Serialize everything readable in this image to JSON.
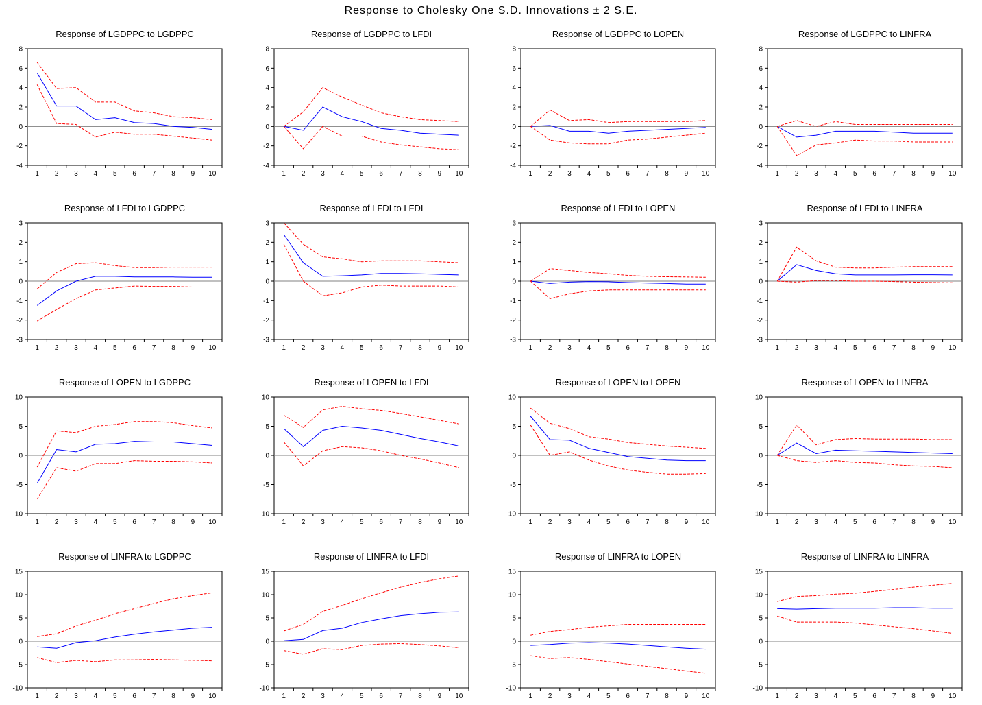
{
  "figure_title": "Response to Cholesky  One S.D. Innovations ± 2 S.E.",
  "colors": {
    "response": "#0000ff",
    "bands": "#ff0000",
    "zero_line": "#808080",
    "frame": "#000000"
  },
  "chart_data": [
    {
      "type": "line",
      "title": "Response of LGDPPC to LGDPPC",
      "x": [
        1,
        2,
        3,
        4,
        5,
        6,
        7,
        8,
        9,
        10
      ],
      "ylim": [
        -4,
        8
      ],
      "yticks": [
        -4,
        -2,
        0,
        2,
        4,
        6,
        8
      ],
      "series": [
        {
          "role": "response",
          "values": [
            5.5,
            2.1,
            2.1,
            0.7,
            0.9,
            0.4,
            0.3,
            0.0,
            -0.1,
            -0.3
          ]
        },
        {
          "role": "upper",
          "values": [
            6.6,
            3.9,
            4.0,
            2.5,
            2.5,
            1.6,
            1.4,
            1.0,
            0.9,
            0.7
          ]
        },
        {
          "role": "lower",
          "values": [
            4.3,
            0.3,
            0.2,
            -1.1,
            -0.6,
            -0.8,
            -0.8,
            -1.0,
            -1.2,
            -1.4
          ]
        }
      ]
    },
    {
      "type": "line",
      "title": "Response of LGDPPC to LFDI",
      "x": [
        1,
        2,
        3,
        4,
        5,
        6,
        7,
        8,
        9,
        10
      ],
      "ylim": [
        -4,
        8
      ],
      "yticks": [
        -4,
        -2,
        0,
        2,
        4,
        6,
        8
      ],
      "series": [
        {
          "role": "response",
          "values": [
            0.0,
            -0.4,
            2.0,
            1.0,
            0.5,
            -0.2,
            -0.4,
            -0.7,
            -0.8,
            -0.9
          ]
        },
        {
          "role": "upper",
          "values": [
            0.0,
            1.5,
            4.0,
            3.0,
            2.2,
            1.4,
            1.0,
            0.7,
            0.6,
            0.5
          ]
        },
        {
          "role": "lower",
          "values": [
            0.0,
            -2.3,
            0.0,
            -1.0,
            -1.0,
            -1.6,
            -1.9,
            -2.1,
            -2.3,
            -2.4
          ]
        }
      ]
    },
    {
      "type": "line",
      "title": "Response of LGDPPC to LOPEN",
      "x": [
        1,
        2,
        3,
        4,
        5,
        6,
        7,
        8,
        9,
        10
      ],
      "ylim": [
        -4,
        8
      ],
      "yticks": [
        -4,
        -2,
        0,
        2,
        4,
        6,
        8
      ],
      "series": [
        {
          "role": "response",
          "values": [
            0.0,
            0.1,
            -0.5,
            -0.5,
            -0.7,
            -0.5,
            -0.4,
            -0.3,
            -0.2,
            -0.1
          ]
        },
        {
          "role": "upper",
          "values": [
            0.0,
            1.7,
            0.6,
            0.7,
            0.4,
            0.5,
            0.5,
            0.5,
            0.5,
            0.6
          ]
        },
        {
          "role": "lower",
          "values": [
            0.0,
            -1.4,
            -1.7,
            -1.8,
            -1.8,
            -1.4,
            -1.3,
            -1.1,
            -0.9,
            -0.7
          ]
        }
      ]
    },
    {
      "type": "line",
      "title": "Response of LGDPPC to LINFRA",
      "x": [
        1,
        2,
        3,
        4,
        5,
        6,
        7,
        8,
        9,
        10
      ],
      "ylim": [
        -4,
        8
      ],
      "yticks": [
        -4,
        -2,
        0,
        2,
        4,
        6,
        8
      ],
      "series": [
        {
          "role": "response",
          "values": [
            0.0,
            -1.1,
            -0.9,
            -0.5,
            -0.5,
            -0.5,
            -0.6,
            -0.7,
            -0.7,
            -0.7
          ]
        },
        {
          "role": "upper",
          "values": [
            0.0,
            0.6,
            0.0,
            0.5,
            0.2,
            0.2,
            0.2,
            0.2,
            0.2,
            0.2
          ]
        },
        {
          "role": "lower",
          "values": [
            0.0,
            -3.0,
            -1.9,
            -1.7,
            -1.4,
            -1.5,
            -1.5,
            -1.6,
            -1.6,
            -1.6
          ]
        }
      ]
    },
    {
      "type": "line",
      "title": "Response of LFDI to LGDPPC",
      "x": [
        1,
        2,
        3,
        4,
        5,
        6,
        7,
        8,
        9,
        10
      ],
      "ylim": [
        -3,
        3
      ],
      "yticks": [
        -3,
        -2,
        -1,
        0,
        1,
        2,
        3
      ],
      "series": [
        {
          "role": "response",
          "values": [
            -1.25,
            -0.5,
            0.0,
            0.25,
            0.25,
            0.22,
            0.22,
            0.22,
            0.2,
            0.2
          ]
        },
        {
          "role": "upper",
          "values": [
            -0.4,
            0.45,
            0.9,
            0.95,
            0.8,
            0.7,
            0.7,
            0.72,
            0.72,
            0.72
          ]
        },
        {
          "role": "lower",
          "values": [
            -2.05,
            -1.45,
            -0.9,
            -0.45,
            -0.35,
            -0.25,
            -0.27,
            -0.27,
            -0.3,
            -0.3
          ]
        }
      ]
    },
    {
      "type": "line",
      "title": "Response of LFDI to LFDI",
      "x": [
        1,
        2,
        3,
        4,
        5,
        6,
        7,
        8,
        9,
        10
      ],
      "ylim": [
        -3,
        3
      ],
      "yticks": [
        -3,
        -2,
        -1,
        0,
        1,
        2,
        3
      ],
      "series": [
        {
          "role": "response",
          "values": [
            2.4,
            0.95,
            0.25,
            0.28,
            0.32,
            0.4,
            0.4,
            0.38,
            0.35,
            0.32
          ]
        },
        {
          "role": "upper",
          "values": [
            3.0,
            1.9,
            1.25,
            1.15,
            1.0,
            1.05,
            1.05,
            1.05,
            1.0,
            0.95
          ]
        },
        {
          "role": "lower",
          "values": [
            1.9,
            0.0,
            -0.75,
            -0.6,
            -0.3,
            -0.2,
            -0.25,
            -0.25,
            -0.25,
            -0.3
          ]
        }
      ]
    },
    {
      "type": "line",
      "title": "Response of LFDI to LOPEN",
      "x": [
        1,
        2,
        3,
        4,
        5,
        6,
        7,
        8,
        9,
        10
      ],
      "ylim": [
        -3,
        3
      ],
      "yticks": [
        -3,
        -2,
        -1,
        0,
        1,
        2,
        3
      ],
      "series": [
        {
          "role": "response",
          "values": [
            0.0,
            -0.12,
            -0.05,
            -0.02,
            -0.03,
            -0.07,
            -0.1,
            -0.12,
            -0.15,
            -0.15
          ]
        },
        {
          "role": "upper",
          "values": [
            0.0,
            0.65,
            0.55,
            0.45,
            0.38,
            0.3,
            0.25,
            0.23,
            0.22,
            0.2
          ]
        },
        {
          "role": "lower",
          "values": [
            0.0,
            -0.9,
            -0.65,
            -0.5,
            -0.45,
            -0.45,
            -0.45,
            -0.45,
            -0.45,
            -0.45
          ]
        }
      ]
    },
    {
      "type": "line",
      "title": "Response of LFDI to LINFRA",
      "x": [
        1,
        2,
        3,
        4,
        5,
        6,
        7,
        8,
        9,
        10
      ],
      "ylim": [
        -3,
        3
      ],
      "yticks": [
        -3,
        -2,
        -1,
        0,
        1,
        2,
        3
      ],
      "series": [
        {
          "role": "response",
          "values": [
            0.0,
            0.85,
            0.55,
            0.38,
            0.32,
            0.32,
            0.32,
            0.33,
            0.33,
            0.32
          ]
        },
        {
          "role": "upper",
          "values": [
            0.0,
            1.75,
            1.05,
            0.72,
            0.68,
            0.68,
            0.72,
            0.75,
            0.75,
            0.75
          ]
        },
        {
          "role": "lower",
          "values": [
            0.0,
            -0.05,
            0.03,
            0.03,
            0.0,
            0.0,
            -0.02,
            -0.05,
            -0.07,
            -0.08
          ]
        }
      ]
    },
    {
      "type": "line",
      "title": "Response of LOPEN to LGDPPC",
      "x": [
        1,
        2,
        3,
        4,
        5,
        6,
        7,
        8,
        9,
        10
      ],
      "ylim": [
        -10,
        10
      ],
      "yticks": [
        -10,
        -5,
        0,
        5,
        10
      ],
      "series": [
        {
          "role": "response",
          "values": [
            -4.8,
            1.0,
            0.6,
            1.9,
            2.0,
            2.4,
            2.3,
            2.3,
            2.0,
            1.7
          ]
        },
        {
          "role": "upper",
          "values": [
            -2.0,
            4.2,
            3.9,
            5.0,
            5.3,
            5.8,
            5.8,
            5.6,
            5.1,
            4.7
          ]
        },
        {
          "role": "lower",
          "values": [
            -7.5,
            -2.1,
            -2.7,
            -1.4,
            -1.4,
            -0.9,
            -1.0,
            -1.0,
            -1.1,
            -1.3
          ]
        }
      ]
    },
    {
      "type": "line",
      "title": "Response of LOPEN to LFDI",
      "x": [
        1,
        2,
        3,
        4,
        5,
        6,
        7,
        8,
        9,
        10
      ],
      "ylim": [
        -10,
        10
      ],
      "yticks": [
        -10,
        -5,
        0,
        5,
        10
      ],
      "series": [
        {
          "role": "response",
          "values": [
            4.6,
            1.5,
            4.3,
            5.0,
            4.7,
            4.3,
            3.6,
            2.9,
            2.3,
            1.6
          ]
        },
        {
          "role": "upper",
          "values": [
            6.9,
            4.8,
            7.8,
            8.4,
            8.0,
            7.7,
            7.2,
            6.6,
            6.0,
            5.4
          ]
        },
        {
          "role": "lower",
          "values": [
            2.3,
            -1.8,
            0.8,
            1.5,
            1.3,
            0.8,
            0.0,
            -0.6,
            -1.3,
            -2.1
          ]
        }
      ]
    },
    {
      "type": "line",
      "title": "Response of LOPEN to LOPEN",
      "x": [
        1,
        2,
        3,
        4,
        5,
        6,
        7,
        8,
        9,
        10
      ],
      "ylim": [
        -10,
        10
      ],
      "yticks": [
        -10,
        -5,
        0,
        5,
        10
      ],
      "series": [
        {
          "role": "response",
          "values": [
            6.7,
            2.7,
            2.6,
            1.2,
            0.5,
            -0.2,
            -0.5,
            -0.8,
            -0.9,
            -0.9
          ]
        },
        {
          "role": "upper",
          "values": [
            8.1,
            5.5,
            4.6,
            3.2,
            2.8,
            2.2,
            1.9,
            1.6,
            1.4,
            1.2
          ]
        },
        {
          "role": "lower",
          "values": [
            5.2,
            0.0,
            0.6,
            -0.8,
            -1.8,
            -2.5,
            -2.9,
            -3.2,
            -3.2,
            -3.1
          ]
        }
      ]
    },
    {
      "type": "line",
      "title": "Response of LOPEN to LINFRA",
      "x": [
        1,
        2,
        3,
        4,
        5,
        6,
        7,
        8,
        9,
        10
      ],
      "ylim": [
        -10,
        10
      ],
      "yticks": [
        -10,
        -5,
        0,
        5,
        10
      ],
      "series": [
        {
          "role": "response",
          "values": [
            0.0,
            2.1,
            0.3,
            0.9,
            0.8,
            0.7,
            0.6,
            0.5,
            0.4,
            0.3
          ]
        },
        {
          "role": "upper",
          "values": [
            0.0,
            5.2,
            1.8,
            2.7,
            2.9,
            2.8,
            2.8,
            2.8,
            2.7,
            2.7
          ]
        },
        {
          "role": "lower",
          "values": [
            0.0,
            -0.9,
            -1.2,
            -0.9,
            -1.2,
            -1.3,
            -1.6,
            -1.8,
            -1.9,
            -2.1
          ]
        }
      ]
    },
    {
      "type": "line",
      "title": "Response of LINFRA to LGDPPC",
      "x": [
        1,
        2,
        3,
        4,
        5,
        6,
        7,
        8,
        9,
        10
      ],
      "ylim": [
        -10,
        15
      ],
      "yticks": [
        -10,
        -5,
        0,
        5,
        10,
        15
      ],
      "series": [
        {
          "role": "response",
          "values": [
            -1.2,
            -1.5,
            -0.3,
            0.1,
            0.9,
            1.5,
            2.0,
            2.4,
            2.8,
            3.0
          ]
        },
        {
          "role": "upper",
          "values": [
            1.0,
            1.6,
            3.3,
            4.5,
            5.9,
            7.0,
            8.1,
            9.1,
            9.8,
            10.4
          ]
        },
        {
          "role": "lower",
          "values": [
            -3.5,
            -4.6,
            -4.1,
            -4.4,
            -4.0,
            -4.0,
            -3.9,
            -4.0,
            -4.1,
            -4.2
          ]
        }
      ]
    },
    {
      "type": "line",
      "title": "Response of LINFRA to LFDI",
      "x": [
        1,
        2,
        3,
        4,
        5,
        6,
        7,
        8,
        9,
        10
      ],
      "ylim": [
        -10,
        15
      ],
      "yticks": [
        -10,
        -5,
        0,
        5,
        10,
        15
      ],
      "series": [
        {
          "role": "response",
          "values": [
            0.1,
            0.4,
            2.3,
            2.8,
            4.0,
            4.8,
            5.5,
            5.9,
            6.2,
            6.3
          ]
        },
        {
          "role": "upper",
          "values": [
            2.2,
            3.6,
            6.4,
            7.7,
            9.1,
            10.4,
            11.6,
            12.6,
            13.4,
            14.0
          ]
        },
        {
          "role": "lower",
          "values": [
            -2.0,
            -2.8,
            -1.6,
            -1.8,
            -0.9,
            -0.6,
            -0.5,
            -0.7,
            -1.0,
            -1.4
          ]
        }
      ]
    },
    {
      "type": "line",
      "title": "Response of LINFRA to LOPEN",
      "x": [
        1,
        2,
        3,
        4,
        5,
        6,
        7,
        8,
        9,
        10
      ],
      "ylim": [
        -10,
        15
      ],
      "yticks": [
        -10,
        -5,
        0,
        5,
        10,
        15
      ],
      "series": [
        {
          "role": "response",
          "values": [
            -0.9,
            -0.7,
            -0.4,
            -0.3,
            -0.4,
            -0.6,
            -0.9,
            -1.2,
            -1.5,
            -1.7
          ]
        },
        {
          "role": "upper",
          "values": [
            1.3,
            2.1,
            2.5,
            3.0,
            3.3,
            3.6,
            3.6,
            3.6,
            3.6,
            3.6
          ]
        },
        {
          "role": "lower",
          "values": [
            -3.1,
            -3.7,
            -3.5,
            -3.9,
            -4.4,
            -4.9,
            -5.4,
            -5.9,
            -6.4,
            -6.9
          ]
        }
      ]
    },
    {
      "type": "line",
      "title": "Response of LINFRA to LINFRA",
      "x": [
        1,
        2,
        3,
        4,
        5,
        6,
        7,
        8,
        9,
        10
      ],
      "ylim": [
        -10,
        15
      ],
      "yticks": [
        -10,
        -5,
        0,
        5,
        10,
        15
      ],
      "series": [
        {
          "role": "response",
          "values": [
            7.0,
            6.9,
            7.0,
            7.1,
            7.1,
            7.1,
            7.2,
            7.2,
            7.1,
            7.1
          ]
        },
        {
          "role": "upper",
          "values": [
            8.5,
            9.6,
            9.8,
            10.1,
            10.3,
            10.7,
            11.1,
            11.6,
            12.0,
            12.4
          ]
        },
        {
          "role": "lower",
          "values": [
            5.4,
            4.1,
            4.1,
            4.1,
            3.9,
            3.5,
            3.1,
            2.7,
            2.2,
            1.7
          ]
        }
      ]
    }
  ]
}
